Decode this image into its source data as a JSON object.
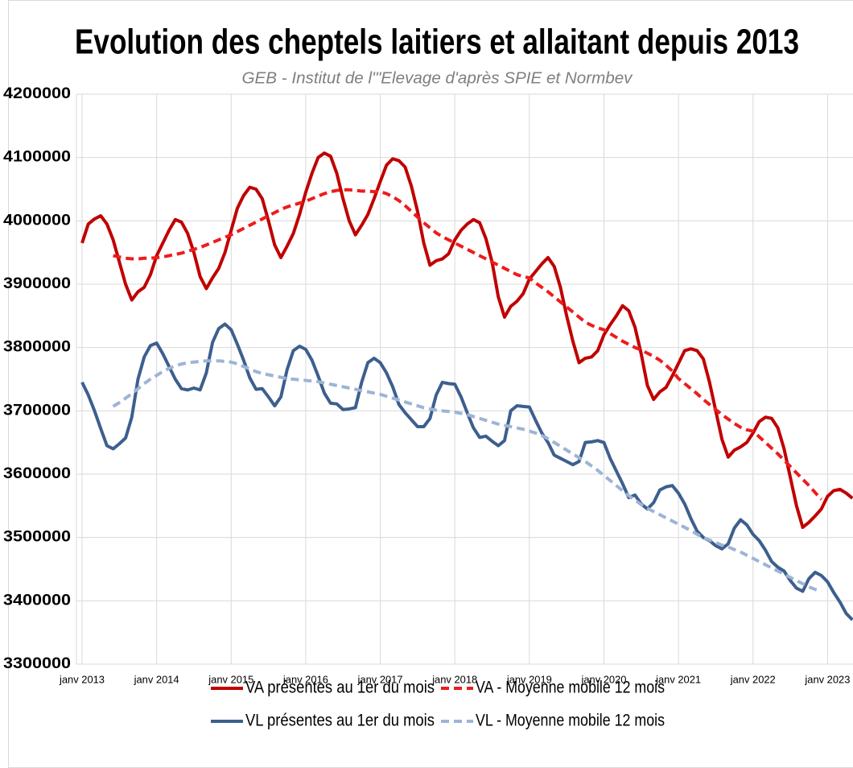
{
  "chart_data": {
    "type": "line",
    "title": "Evolution des cheptels laitiers et allaitant depuis 2013",
    "subtitle": "GEB - Institut de l'\"Elevage d'après SPIE et Normbev",
    "categories": [
      "janv 2013",
      null,
      null,
      null,
      null,
      null,
      null,
      null,
      null,
      null,
      null,
      null,
      "janv 2014",
      null,
      null,
      null,
      null,
      null,
      null,
      null,
      null,
      null,
      null,
      null,
      "janv 2015",
      null,
      null,
      null,
      null,
      null,
      null,
      null,
      null,
      null,
      null,
      null,
      "janv 2016",
      null,
      null,
      null,
      null,
      null,
      null,
      null,
      null,
      null,
      null,
      null,
      "janv 2017",
      null,
      null,
      null,
      null,
      null,
      null,
      null,
      null,
      null,
      null,
      null,
      "janv 2018",
      null,
      null,
      null,
      null,
      null,
      null,
      null,
      null,
      null,
      null,
      null,
      "janv 2019",
      null,
      null,
      null,
      null,
      null,
      null,
      null,
      null,
      null,
      null,
      null,
      "janv 2020",
      null,
      null,
      null,
      null,
      null,
      null,
      null,
      null,
      null,
      null,
      null,
      "janv 2021",
      null,
      null,
      null,
      null,
      null,
      null,
      null,
      null,
      null,
      null,
      null,
      "janv 2022",
      null,
      null,
      null,
      null,
      null,
      null,
      null,
      null,
      null,
      null,
      null,
      "janv 2023",
      null,
      null,
      null,
      null
    ],
    "series": [
      {
        "name": "VA présentes au 1er du mois",
        "color": "#c00000",
        "dash": false,
        "values": [
          3965000,
          3995000,
          4003000,
          4008000,
          3995000,
          3970000,
          3935000,
          3900000,
          3875000,
          3888000,
          3895000,
          3915000,
          3945000,
          3965000,
          3985000,
          4002000,
          3998000,
          3980000,
          3950000,
          3912000,
          3893000,
          3910000,
          3925000,
          3950000,
          3985000,
          4020000,
          4040000,
          4053000,
          4050000,
          4035000,
          4000000,
          3962000,
          3942000,
          3960000,
          3980000,
          4010000,
          4045000,
          4075000,
          4100000,
          4107000,
          4102000,
          4075000,
          4035000,
          4000000,
          3978000,
          3993000,
          4010000,
          4035000,
          4062000,
          4088000,
          4098000,
          4095000,
          4085000,
          4055000,
          4015000,
          3965000,
          3930000,
          3937000,
          3940000,
          3948000,
          3970000,
          3985000,
          3995000,
          4002000,
          3997000,
          3972000,
          3935000,
          3880000,
          3848000,
          3865000,
          3873000,
          3885000,
          3908000,
          3920000,
          3932000,
          3942000,
          3928000,
          3895000,
          3850000,
          3810000,
          3776000,
          3783000,
          3785000,
          3795000,
          3820000,
          3836000,
          3850000,
          3866000,
          3858000,
          3832000,
          3790000,
          3740000,
          3718000,
          3730000,
          3737000,
          3755000,
          3775000,
          3795000,
          3798000,
          3795000,
          3782000,
          3745000,
          3700000,
          3655000,
          3627000,
          3638000,
          3643000,
          3650000,
          3665000,
          3683000,
          3690000,
          3688000,
          3673000,
          3640000,
          3595000,
          3550000,
          3516000,
          3524000,
          3534000,
          3545000,
          3565000,
          3574000,
          3576000,
          3570000,
          3562000
        ]
      },
      {
        "name": "VA - Moyenne mobile 12 mois",
        "color": "#ee1c1c",
        "dash": true,
        "values": [
          null,
          null,
          null,
          null,
          null,
          3945000,
          3943000,
          3941000,
          3940000,
          3940000,
          3941000,
          3941000,
          3942000,
          3943000,
          3945000,
          3947000,
          3949000,
          3952000,
          3955000,
          3958000,
          3962000,
          3966000,
          3970000,
          3974000,
          3978000,
          3983000,
          3988000,
          3993000,
          3998000,
          4003000,
          4008000,
          4013000,
          4018000,
          4022000,
          4025000,
          4028000,
          4031000,
          4035000,
          4039000,
          4043000,
          4046000,
          4048000,
          4049000,
          4049000,
          4048000,
          4047000,
          4047000,
          4046000,
          4046000,
          4043000,
          4038000,
          4032000,
          4024000,
          4015000,
          4006000,
          3997000,
          3989000,
          3981000,
          3975000,
          3970000,
          3965000,
          3960000,
          3955000,
          3950000,
          3945000,
          3940000,
          3935000,
          3930000,
          3925000,
          3920000,
          3915000,
          3912000,
          3910000,
          3902000,
          3895000,
          3888000,
          3880000,
          3872000,
          3864000,
          3856000,
          3848000,
          3840000,
          3835000,
          3831000,
          3828000,
          3822000,
          3816000,
          3810000,
          3805000,
          3800000,
          3796000,
          3791000,
          3786000,
          3780000,
          3772000,
          3763000,
          3751000,
          3743000,
          3735000,
          3727000,
          3718000,
          3710000,
          3702000,
          3694000,
          3687000,
          3680000,
          3674000,
          3670000,
          3668000,
          3659000,
          3650000,
          3641000,
          3632000,
          3622000,
          3612000,
          3602000,
          3592000,
          3582000,
          3571000,
          3560000,
          null,
          null,
          null,
          null,
          null
        ]
      },
      {
        "name": "VL présentes au 1er du mois",
        "color": "#3d5f8e",
        "dash": false,
        "values": [
          3745000,
          3725000,
          3700000,
          3672000,
          3645000,
          3640000,
          3648000,
          3657000,
          3690000,
          3750000,
          3785000,
          3803000,
          3807000,
          3790000,
          3770000,
          3750000,
          3735000,
          3733000,
          3736000,
          3733000,
          3760000,
          3808000,
          3830000,
          3837000,
          3828000,
          3805000,
          3780000,
          3752000,
          3734000,
          3735000,
          3722000,
          3708000,
          3722000,
          3765000,
          3795000,
          3802000,
          3797000,
          3780000,
          3755000,
          3728000,
          3712000,
          3711000,
          3702000,
          3703000,
          3705000,
          3745000,
          3776000,
          3783000,
          3776000,
          3760000,
          3738000,
          3710000,
          3697000,
          3686000,
          3675000,
          3675000,
          3688000,
          3725000,
          3745000,
          3743000,
          3742000,
          3722000,
          3697000,
          3673000,
          3658000,
          3660000,
          3652000,
          3645000,
          3653000,
          3700000,
          3708000,
          3707000,
          3706000,
          3685000,
          3665000,
          3650000,
          3630000,
          3625000,
          3620000,
          3615000,
          3620000,
          3650000,
          3651000,
          3653000,
          3650000,
          3625000,
          3605000,
          3585000,
          3563000,
          3567000,
          3553000,
          3545000,
          3555000,
          3575000,
          3580000,
          3582000,
          3570000,
          3553000,
          3530000,
          3510000,
          3500000,
          3495000,
          3487000,
          3482000,
          3490000,
          3515000,
          3528000,
          3520000,
          3505000,
          3495000,
          3480000,
          3462000,
          3453000,
          3447000,
          3432000,
          3420000,
          3415000,
          3435000,
          3445000,
          3440000,
          3430000,
          3413000,
          3398000,
          3380000,
          3370000
        ]
      },
      {
        "name": "VL - Moyenne mobile 12 mois",
        "color": "#9db4d6",
        "dash": true,
        "values": [
          null,
          null,
          null,
          null,
          null,
          3707000,
          3713000,
          3720000,
          3727000,
          3735000,
          3743000,
          3750000,
          3756000,
          3762000,
          3767000,
          3771000,
          3774000,
          3776000,
          3777000,
          3778000,
          3779000,
          3779000,
          3779000,
          3778000,
          3777000,
          3774000,
          3770000,
          3766000,
          3762000,
          3759000,
          3757000,
          3755000,
          3753000,
          3751000,
          3750000,
          3749000,
          3748000,
          3747000,
          3746000,
          3744000,
          3742000,
          3740000,
          3738000,
          3736000,
          3734000,
          3732000,
          3730000,
          3728000,
          3726000,
          3723000,
          3720000,
          3717000,
          3714000,
          3711000,
          3708000,
          3705000,
          3703000,
          3701000,
          3700000,
          3699000,
          3698000,
          3696000,
          3694000,
          3691000,
          3688000,
          3685000,
          3682000,
          3679000,
          3677000,
          3675000,
          3673000,
          3671000,
          3668000,
          3665000,
          3661000,
          3656000,
          3650000,
          3644000,
          3638000,
          3632000,
          3626000,
          3620000,
          3613000,
          3606000,
          3598000,
          3590000,
          3582000,
          3574000,
          3566000,
          3559000,
          3552000,
          3546000,
          3541000,
          3536000,
          3531000,
          3526000,
          3521000,
          3516000,
          3511000,
          3505000,
          3500000,
          3496000,
          3492000,
          3488000,
          3485000,
          3481000,
          3477000,
          3472000,
          3467000,
          3462000,
          3457000,
          3452000,
          3447000,
          3442000,
          3437000,
          3432000,
          3427000,
          3422000,
          3418000,
          3415000,
          null,
          null,
          null,
          null,
          null
        ]
      }
    ],
    "ylim": [
      3300000,
      4200000
    ],
    "yticks": [
      3300000,
      3400000,
      3500000,
      3600000,
      3700000,
      3800000,
      3900000,
      4000000,
      4100000,
      4200000
    ],
    "grid": true
  }
}
